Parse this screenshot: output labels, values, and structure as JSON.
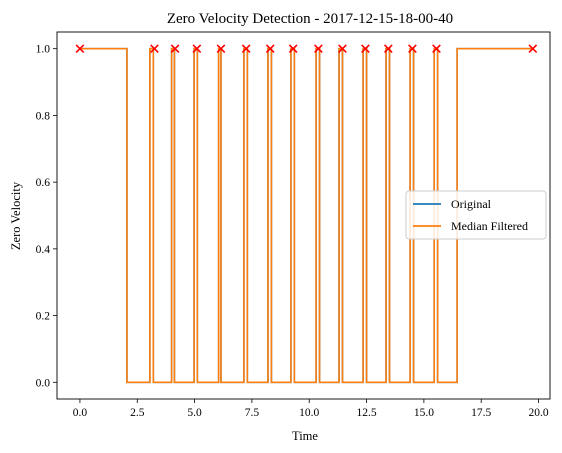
{
  "chart_data": {
    "type": "line",
    "title": "Zero Velocity Detection - 2017-12-15-18-00-40",
    "xlabel": "Time",
    "ylabel": "Zero Velocity",
    "xlim": [
      -1.0,
      20.5
    ],
    "ylim": [
      -0.05,
      1.05
    ],
    "x_ticks": [
      0.0,
      2.5,
      5.0,
      7.5,
      10.0,
      12.5,
      15.0,
      17.5,
      20.0
    ],
    "x_tick_labels": [
      "0.0",
      "2.5",
      "5.0",
      "7.5",
      "10.0",
      "12.5",
      "15.0",
      "17.5",
      "20.0"
    ],
    "y_ticks": [
      0.0,
      0.2,
      0.4,
      0.6,
      0.8,
      1.0
    ],
    "y_tick_labels": [
      "0.0",
      "0.2",
      "0.4",
      "0.6",
      "0.8",
      "1.0"
    ],
    "legend_position": "center-right",
    "series": [
      {
        "name": "Original",
        "color": "#1f77b4",
        "step": true,
        "x": [
          0.0,
          2.05,
          2.05,
          3.05,
          3.05,
          3.2,
          3.2,
          4.0,
          4.0,
          4.12,
          4.12,
          4.98,
          4.98,
          5.12,
          5.12,
          6.05,
          6.05,
          6.15,
          6.15,
          7.15,
          7.15,
          7.3,
          7.3,
          8.2,
          8.2,
          8.35,
          8.35,
          9.2,
          9.2,
          9.35,
          9.35,
          10.3,
          10.3,
          10.45,
          10.45,
          11.3,
          11.3,
          11.45,
          11.45,
          12.35,
          12.35,
          12.5,
          12.5,
          13.35,
          13.35,
          13.5,
          13.5,
          14.4,
          14.4,
          14.55,
          14.55,
          15.45,
          15.45,
          15.6,
          15.6,
          16.45,
          16.45,
          19.75
        ],
        "y": [
          1,
          1,
          0,
          0,
          1,
          1,
          0,
          0,
          1,
          1,
          0,
          0,
          1,
          1,
          0,
          0,
          1,
          1,
          0,
          0,
          1,
          1,
          0,
          0,
          1,
          1,
          0,
          0,
          1,
          1,
          0,
          0,
          1,
          1,
          0,
          0,
          1,
          1,
          0,
          0,
          1,
          1,
          0,
          0,
          1,
          1,
          0,
          0,
          1,
          1,
          0,
          0,
          1,
          1,
          0,
          0,
          1,
          1
        ]
      },
      {
        "name": "Median Filtered",
        "color": "#ff7f0e",
        "step": true,
        "x": [
          0.0,
          2.05,
          2.05,
          3.05,
          3.05,
          3.2,
          3.2,
          4.0,
          4.0,
          4.12,
          4.12,
          4.98,
          4.98,
          5.12,
          5.12,
          6.05,
          6.05,
          6.15,
          6.15,
          7.15,
          7.15,
          7.3,
          7.3,
          8.2,
          8.2,
          8.35,
          8.35,
          9.2,
          9.2,
          9.35,
          9.35,
          10.3,
          10.3,
          10.45,
          10.45,
          11.3,
          11.3,
          11.45,
          11.45,
          12.35,
          12.35,
          12.5,
          12.5,
          13.35,
          13.35,
          13.5,
          13.5,
          14.4,
          14.4,
          14.55,
          14.55,
          15.45,
          15.45,
          15.6,
          15.6,
          16.45,
          16.45,
          19.75
        ],
        "y": [
          1,
          1,
          0,
          0,
          1,
          1,
          0,
          0,
          1,
          1,
          0,
          0,
          1,
          1,
          0,
          0,
          1,
          1,
          0,
          0,
          1,
          1,
          0,
          0,
          1,
          1,
          0,
          0,
          1,
          1,
          0,
          0,
          1,
          1,
          0,
          0,
          1,
          1,
          0,
          0,
          1,
          1,
          0,
          0,
          1,
          1,
          0,
          0,
          1,
          1,
          0,
          0,
          1,
          1,
          0,
          0,
          1,
          1
        ]
      }
    ],
    "markers": {
      "symbol": "x",
      "color": "#ff0000",
      "x": [
        0.0,
        3.25,
        4.15,
        5.1,
        6.15,
        7.25,
        8.3,
        9.3,
        10.4,
        11.45,
        12.45,
        13.45,
        14.5,
        15.55,
        19.75
      ],
      "y": [
        1,
        1,
        1,
        1,
        1,
        1,
        1,
        1,
        1,
        1,
        1,
        1,
        1,
        1,
        1
      ]
    }
  }
}
